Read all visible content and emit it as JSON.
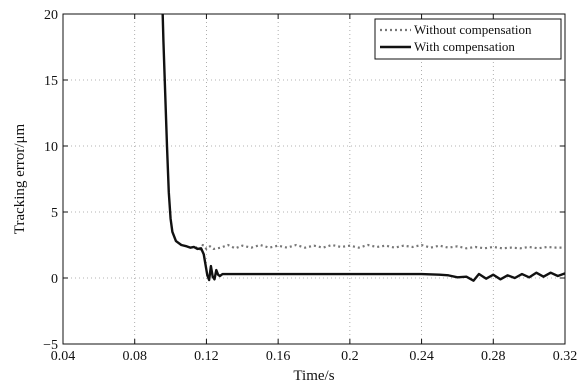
{
  "chart_data": {
    "type": "line",
    "title": "",
    "xlabel": "Time/s",
    "ylabel": "Tracking error/μm",
    "xlim": [
      0.04,
      0.32
    ],
    "ylim": [
      -5,
      20
    ],
    "grid": true,
    "legend_position": "top-right",
    "x_ticks": [
      "0.04",
      "0.08",
      "0.12",
      "0.16",
      "0.2",
      "0.24",
      "0.28",
      "0.32"
    ],
    "y_ticks": [
      "−5",
      "0",
      "5",
      "10",
      "15",
      "20"
    ],
    "series": [
      {
        "name": "Without compensation",
        "style": "dotted",
        "color": "#777777",
        "points": [
          [
            0.114,
            2.35
          ],
          [
            0.116,
            2.1
          ],
          [
            0.118,
            2.5
          ],
          [
            0.12,
            2.2
          ],
          [
            0.122,
            2.4
          ],
          [
            0.124,
            2.2
          ],
          [
            0.128,
            2.3
          ],
          [
            0.132,
            2.5
          ],
          [
            0.136,
            2.25
          ],
          [
            0.14,
            2.45
          ],
          [
            0.145,
            2.3
          ],
          [
            0.15,
            2.5
          ],
          [
            0.155,
            2.3
          ],
          [
            0.16,
            2.45
          ],
          [
            0.165,
            2.3
          ],
          [
            0.17,
            2.5
          ],
          [
            0.175,
            2.3
          ],
          [
            0.18,
            2.45
          ],
          [
            0.185,
            2.3
          ],
          [
            0.19,
            2.5
          ],
          [
            0.195,
            2.35
          ],
          [
            0.2,
            2.45
          ],
          [
            0.205,
            2.3
          ],
          [
            0.21,
            2.5
          ],
          [
            0.215,
            2.35
          ],
          [
            0.22,
            2.45
          ],
          [
            0.225,
            2.3
          ],
          [
            0.23,
            2.45
          ],
          [
            0.235,
            2.35
          ],
          [
            0.24,
            2.5
          ],
          [
            0.245,
            2.3
          ],
          [
            0.25,
            2.45
          ],
          [
            0.255,
            2.3
          ],
          [
            0.26,
            2.4
          ],
          [
            0.265,
            2.25
          ],
          [
            0.27,
            2.35
          ],
          [
            0.275,
            2.25
          ],
          [
            0.28,
            2.35
          ],
          [
            0.285,
            2.25
          ],
          [
            0.29,
            2.3
          ],
          [
            0.295,
            2.25
          ],
          [
            0.3,
            2.35
          ],
          [
            0.305,
            2.25
          ],
          [
            0.31,
            2.35
          ],
          [
            0.315,
            2.3
          ],
          [
            0.32,
            2.3
          ]
        ]
      },
      {
        "name": "With compensation",
        "style": "solid",
        "color": "#111111",
        "points": [
          [
            0.0955,
            20.5
          ],
          [
            0.096,
            18.0
          ],
          [
            0.097,
            14.0
          ],
          [
            0.098,
            10.0
          ],
          [
            0.099,
            6.5
          ],
          [
            0.1,
            4.5
          ],
          [
            0.101,
            3.5
          ],
          [
            0.103,
            2.8
          ],
          [
            0.106,
            2.5
          ],
          [
            0.109,
            2.4
          ],
          [
            0.111,
            2.3
          ],
          [
            0.113,
            2.35
          ],
          [
            0.115,
            2.2
          ],
          [
            0.117,
            2.25
          ],
          [
            0.1185,
            1.8
          ],
          [
            0.1195,
            1.0
          ],
          [
            0.1205,
            0.2
          ],
          [
            0.1215,
            -0.15
          ],
          [
            0.1225,
            0.9
          ],
          [
            0.1235,
            0.1
          ],
          [
            0.1245,
            -0.1
          ],
          [
            0.1255,
            0.6
          ],
          [
            0.1265,
            0.25
          ],
          [
            0.1275,
            0.15
          ],
          [
            0.129,
            0.3
          ],
          [
            0.132,
            0.3
          ],
          [
            0.15,
            0.3
          ],
          [
            0.18,
            0.3
          ],
          [
            0.21,
            0.3
          ],
          [
            0.24,
            0.3
          ],
          [
            0.25,
            0.25
          ],
          [
            0.255,
            0.2
          ],
          [
            0.26,
            0.05
          ],
          [
            0.265,
            0.1
          ],
          [
            0.269,
            -0.2
          ],
          [
            0.272,
            0.3
          ],
          [
            0.276,
            -0.05
          ],
          [
            0.28,
            0.25
          ],
          [
            0.284,
            -0.1
          ],
          [
            0.288,
            0.2
          ],
          [
            0.292,
            0.0
          ],
          [
            0.296,
            0.3
          ],
          [
            0.3,
            0.05
          ],
          [
            0.304,
            0.4
          ],
          [
            0.308,
            0.1
          ],
          [
            0.312,
            0.4
          ],
          [
            0.316,
            0.15
          ],
          [
            0.32,
            0.35
          ]
        ]
      }
    ]
  }
}
